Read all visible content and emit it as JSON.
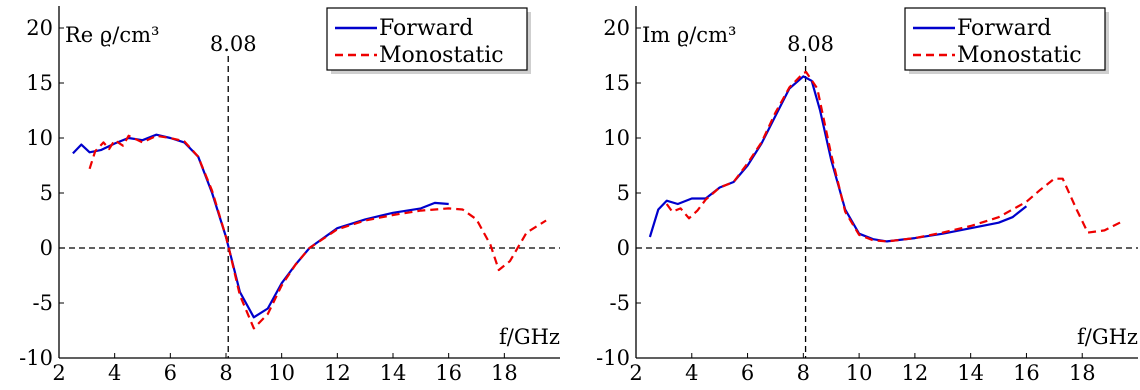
{
  "chart_data": [
    {
      "type": "line",
      "ylabel": "Re ϱ/cm³",
      "xlabel": "f/GHz",
      "xlim": [
        2,
        20
      ],
      "ylim": [
        -10,
        22
      ],
      "xticks": [
        "2",
        "4",
        "6",
        "8",
        "10",
        "12",
        "14",
        "16",
        "18"
      ],
      "yticks": [
        "-10",
        "-5",
        "0",
        "5",
        "10",
        "15",
        "20"
      ],
      "vline": {
        "x": 8.08,
        "label": "8.08"
      },
      "hline": {
        "y": 0
      },
      "legend": "top-right",
      "series": [
        {
          "name": "Forward",
          "color": "#0000cc",
          "style": "solid",
          "x": [
            2.5,
            2.8,
            3.1,
            3.5,
            4.0,
            4.5,
            5.0,
            5.5,
            6.0,
            6.5,
            7.0,
            7.5,
            8.0,
            8.1,
            8.5,
            9.0,
            9.5,
            10.0,
            10.5,
            11.0,
            12.0,
            13.0,
            14.0,
            15.0,
            15.5,
            16.0
          ],
          "y": [
            8.6,
            9.4,
            8.7,
            8.9,
            9.5,
            10.0,
            9.8,
            10.3,
            10.0,
            9.6,
            8.3,
            5.0,
            1.0,
            0.0,
            -4.0,
            -6.3,
            -5.5,
            -3.2,
            -1.5,
            0.0,
            1.8,
            2.6,
            3.2,
            3.6,
            4.1,
            4.0
          ]
        },
        {
          "name": "Monostatic",
          "color": "#ee0000",
          "style": "dashed",
          "x": [
            3.1,
            3.3,
            3.6,
            3.8,
            4.0,
            4.3,
            4.5,
            5.0,
            5.5,
            6.0,
            6.5,
            7.0,
            7.5,
            8.0,
            8.1,
            8.5,
            9.0,
            9.5,
            10.0,
            10.5,
            11.0,
            12.0,
            13.0,
            14.0,
            15.0,
            16.0,
            16.5,
            17.0,
            17.5,
            17.8,
            18.2,
            18.8,
            19.5
          ],
          "y": [
            7.2,
            8.8,
            9.6,
            9.0,
            9.8,
            9.3,
            10.2,
            9.6,
            10.2,
            10.0,
            9.7,
            8.3,
            5.2,
            1.0,
            0.0,
            -4.3,
            -7.3,
            -6.0,
            -3.4,
            -1.5,
            0.0,
            1.7,
            2.5,
            3.0,
            3.4,
            3.6,
            3.5,
            2.6,
            0.3,
            -2.0,
            -1.2,
            1.4,
            2.5
          ]
        }
      ]
    },
    {
      "type": "line",
      "ylabel": "Im ϱ/cm³",
      "xlabel": "f/GHz",
      "xlim": [
        2,
        20
      ],
      "ylim": [
        -10,
        22
      ],
      "xticks": [
        "2",
        "4",
        "6",
        "8",
        "10",
        "12",
        "14",
        "16",
        "18"
      ],
      "yticks": [
        "-10",
        "-5",
        "0",
        "5",
        "10",
        "15",
        "20"
      ],
      "vline": {
        "x": 8.08,
        "label": "8.08"
      },
      "hline": {
        "y": 0
      },
      "legend": "top-right",
      "series": [
        {
          "name": "Forward",
          "color": "#0000cc",
          "style": "solid",
          "x": [
            2.5,
            2.8,
            3.1,
            3.5,
            4.0,
            4.5,
            5.0,
            5.5,
            6.0,
            6.5,
            7.0,
            7.5,
            8.0,
            8.3,
            8.6,
            9.0,
            9.5,
            10.0,
            10.5,
            11.0,
            12.0,
            13.0,
            14.0,
            15.0,
            15.5,
            16.0
          ],
          "y": [
            1.0,
            3.5,
            4.3,
            4.0,
            4.5,
            4.5,
            5.5,
            6.0,
            7.5,
            9.5,
            12.0,
            14.5,
            15.6,
            15.2,
            12.5,
            8.0,
            3.5,
            1.3,
            0.8,
            0.6,
            0.9,
            1.3,
            1.8,
            2.3,
            2.8,
            3.8
          ]
        },
        {
          "name": "Monostatic",
          "color": "#ee0000",
          "style": "dashed",
          "x": [
            3.1,
            3.3,
            3.6,
            3.9,
            4.2,
            4.5,
            5.0,
            5.5,
            6.0,
            6.5,
            7.0,
            7.5,
            8.0,
            8.1,
            8.5,
            9.0,
            9.5,
            10.0,
            10.5,
            11.0,
            12.0,
            13.0,
            14.0,
            15.0,
            16.0,
            16.5,
            17.0,
            17.3,
            17.8,
            18.2,
            18.8,
            19.5
          ],
          "y": [
            4.0,
            3.3,
            3.6,
            2.7,
            3.4,
            4.4,
            5.5,
            6.0,
            7.7,
            9.6,
            12.3,
            14.6,
            15.9,
            16.0,
            14.5,
            8.5,
            3.3,
            1.2,
            0.7,
            0.6,
            0.9,
            1.4,
            2.0,
            2.8,
            4.2,
            5.3,
            6.3,
            6.3,
            3.5,
            1.4,
            1.6,
            2.5
          ]
        }
      ]
    }
  ]
}
